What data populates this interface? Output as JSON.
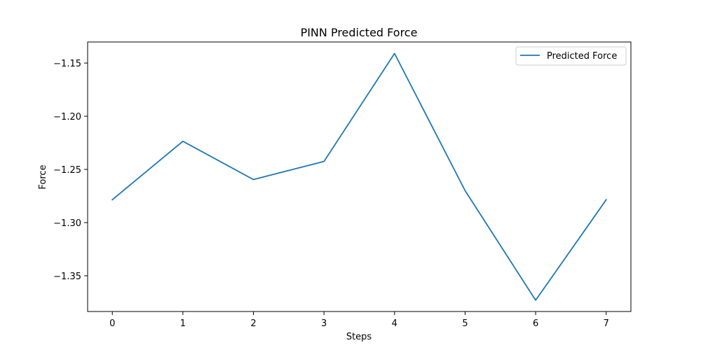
{
  "chart_data": {
    "type": "line",
    "title": "PINN Predicted Force",
    "xlabel": "Steps",
    "ylabel": "Force",
    "x": [
      0,
      1,
      2,
      3,
      4,
      5,
      6,
      7
    ],
    "series": [
      {
        "name": "Predicted Force",
        "color": "#1f77b4",
        "values": [
          -1.2785,
          -1.2235,
          -1.2595,
          -1.2425,
          -1.141,
          -1.27,
          -1.373,
          -1.2785
        ]
      }
    ],
    "xlim": [
      -0.35,
      7.35
    ],
    "ylim": [
      -1.3836,
      -1.1302
    ],
    "xticks": [
      0,
      1,
      2,
      3,
      4,
      5,
      6,
      7
    ],
    "xtick_labels": [
      "0",
      "1",
      "2",
      "3",
      "4",
      "5",
      "6",
      "7"
    ],
    "yticks": [
      -1.15,
      -1.2,
      -1.25,
      -1.3,
      -1.35
    ],
    "ytick_labels": [
      "−1.15",
      "−1.20",
      "−1.25",
      "−1.30",
      "−1.35"
    ],
    "grid": false,
    "legend_position": "top-right"
  }
}
